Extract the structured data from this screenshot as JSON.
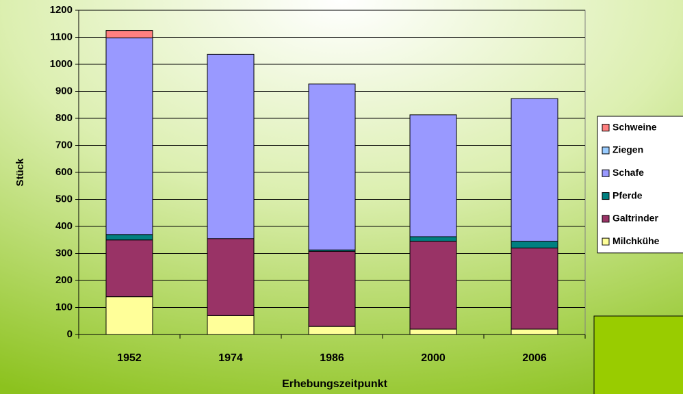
{
  "chart_data": {
    "type": "bar",
    "stacked": true,
    "x_label": "Erhebungszeitpunkt",
    "y_label": "Stück",
    "categories": [
      "1952",
      "1974",
      "1986",
      "2000",
      "2006"
    ],
    "series": [
      {
        "name": "Milchkühe",
        "color": "#ffff99",
        "values": [
          140,
          70,
          30,
          20,
          20
        ]
      },
      {
        "name": "Galtrinder",
        "color": "#993366",
        "values": [
          210,
          285,
          278,
          325,
          300
        ]
      },
      {
        "name": "Pferde",
        "color": "#008080",
        "values": [
          20,
          0,
          5,
          17,
          25
        ]
      },
      {
        "name": "Schafe",
        "color": "#9999ff",
        "values": [
          728,
          682,
          614,
          451,
          528
        ]
      },
      {
        "name": "Ziegen",
        "color": "#99ccff",
        "values": [
          0,
          0,
          0,
          0,
          0
        ]
      },
      {
        "name": "Schweine",
        "color": "#ff8080",
        "values": [
          27,
          0,
          0,
          0,
          0
        ]
      }
    ],
    "ylim": [
      0,
      1200
    ],
    "yticks": [
      0,
      100,
      200,
      300,
      400,
      500,
      600,
      700,
      800,
      900,
      1000,
      1100,
      1200
    ],
    "grid": true
  }
}
